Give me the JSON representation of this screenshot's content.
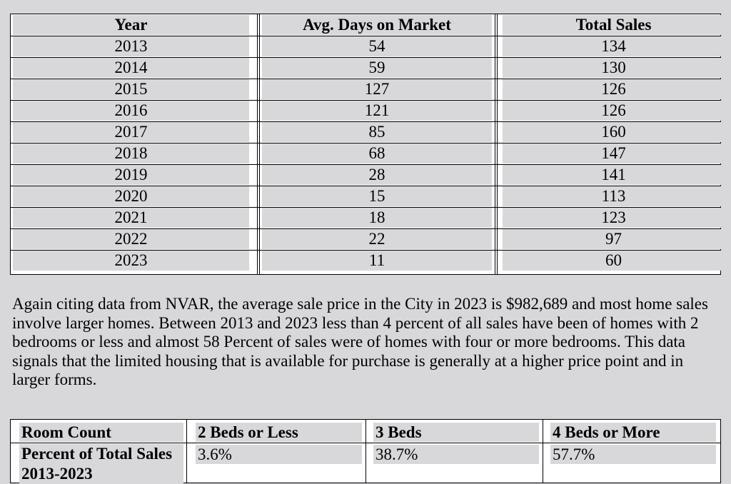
{
  "sales_table": {
    "headers": [
      "Year",
      "Avg. Days on Market",
      "Total Sales"
    ],
    "rows": [
      [
        "2013",
        "54",
        "134"
      ],
      [
        "2014",
        "59",
        "130"
      ],
      [
        "2015",
        "127",
        "126"
      ],
      [
        "2016",
        "121",
        "126"
      ],
      [
        "2017",
        "85",
        "160"
      ],
      [
        "2018",
        "68",
        "147"
      ],
      [
        "2019",
        "28",
        "141"
      ],
      [
        "2020",
        "15",
        "113"
      ],
      [
        "2021",
        "18",
        "123"
      ],
      [
        "2022",
        "22",
        "97"
      ],
      [
        "2023",
        "11",
        "60"
      ]
    ]
  },
  "paragraph": "Again citing data from NVAR, the average sale price in the City in 2023 is $982,689 and most home sales involve larger homes. Between 2013 and 2023 less than 4 percent of all sales have been of homes with 2 bedrooms or less and almost 58 Percent of sales were of homes with four or more bedrooms. This data signals that the limited housing that is available for purchase is generally at a higher price point and in larger forms.",
  "room_table": {
    "headers": [
      "Room Count",
      "2 Beds or Less",
      "3 Beds",
      "4 Beds or More"
    ],
    "row_label": "Percent of Total Sales 2013-2023",
    "values": [
      "3.6%",
      "38.7%",
      "57.7%"
    ]
  }
}
